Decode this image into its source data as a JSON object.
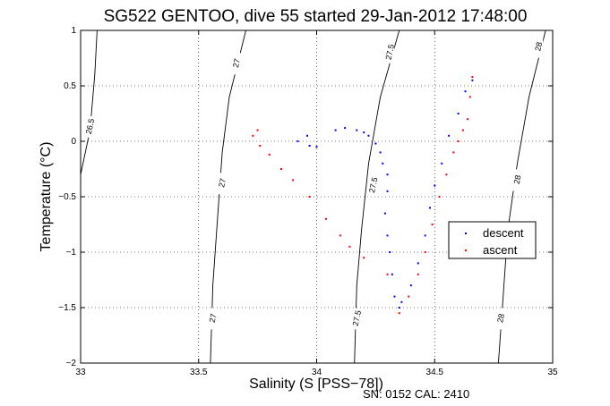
{
  "chart_data": {
    "type": "scatter",
    "title": "SG522 GENTOO, dive 55 started 29-Jan-2012 17:48:00",
    "xlabel": "Salinity (S [PSS−78])",
    "ylabel": "Temperature (°C)",
    "xlim": [
      33,
      35
    ],
    "ylim": [
      -2,
      1
    ],
    "xticks": [
      33,
      33.5,
      34,
      34.5,
      35
    ],
    "xtick_labels": [
      "33",
      "33.5",
      "34",
      "34.5",
      "35"
    ],
    "yticks": [
      1,
      0.5,
      0,
      -0.5,
      -1,
      -1.5,
      -2
    ],
    "ytick_labels": [
      "1",
      "0.5",
      "0",
      "−0.5",
      "−1",
      "−1.5",
      "−2"
    ],
    "grid": true,
    "grid_style": "dotted",
    "legend_position": "right-center",
    "series": [
      {
        "name": "descent",
        "color": "#0000ff",
        "marker": "dot",
        "points": [
          [
            34.08,
            0.1
          ],
          [
            34.12,
            0.12
          ],
          [
            34.17,
            0.1
          ],
          [
            34.2,
            0.08
          ],
          [
            34.22,
            0.05
          ],
          [
            34.25,
            -0.02
          ],
          [
            34.27,
            -0.1
          ],
          [
            34.28,
            -0.2
          ],
          [
            34.3,
            -0.3
          ],
          [
            34.3,
            -0.45
          ],
          [
            34.29,
            -0.65
          ],
          [
            34.3,
            -0.85
          ],
          [
            34.31,
            -1.0
          ],
          [
            34.32,
            -1.2
          ],
          [
            34.33,
            -1.4
          ],
          [
            34.35,
            -1.5
          ],
          [
            34.36,
            -1.45
          ],
          [
            34.4,
            -1.3
          ],
          [
            34.43,
            -1.1
          ],
          [
            34.46,
            -0.85
          ],
          [
            34.48,
            -0.6
          ],
          [
            34.5,
            -0.4
          ],
          [
            34.53,
            -0.2
          ],
          [
            34.56,
            0.05
          ],
          [
            34.6,
            0.25
          ],
          [
            34.63,
            0.45
          ],
          [
            34.66,
            0.55
          ],
          [
            34.0,
            -0.05
          ],
          [
            33.97,
            -0.04
          ],
          [
            33.92,
            0.0
          ],
          [
            33.96,
            0.05
          ]
        ]
      },
      {
        "name": "ascent",
        "color": "#ff0000",
        "marker": "dot",
        "points": [
          [
            34.66,
            0.58
          ],
          [
            34.65,
            0.4
          ],
          [
            34.64,
            0.2
          ],
          [
            34.62,
            0.1
          ],
          [
            34.6,
            0.0
          ],
          [
            34.58,
            -0.1
          ],
          [
            34.55,
            -0.3
          ],
          [
            34.52,
            -0.5
          ],
          [
            34.49,
            -0.75
          ],
          [
            34.46,
            -1.0
          ],
          [
            34.43,
            -1.2
          ],
          [
            34.39,
            -1.4
          ],
          [
            34.35,
            -1.55
          ],
          [
            34.3,
            -1.2
          ],
          [
            34.2,
            -1.05
          ],
          [
            34.14,
            -0.95
          ],
          [
            34.1,
            -0.85
          ],
          [
            34.04,
            -0.7
          ],
          [
            33.97,
            -0.5
          ],
          [
            33.9,
            -0.35
          ],
          [
            33.85,
            -0.25
          ],
          [
            33.8,
            -0.12
          ],
          [
            33.76,
            -0.04
          ],
          [
            33.73,
            0.05
          ],
          [
            33.75,
            0.1
          ]
        ]
      }
    ],
    "density_isolines": [
      {
        "label": "26.5",
        "points": [
          [
            33.07,
            1.0
          ],
          [
            33.06,
            0.6
          ],
          [
            33.04,
            0.1
          ],
          [
            32.99,
            -0.4
          ]
        ]
      },
      {
        "label": "27",
        "points": [
          [
            33.7,
            1.0
          ],
          [
            33.63,
            0.4
          ],
          [
            33.6,
            -0.1
          ],
          [
            33.58,
            -0.7
          ],
          [
            33.56,
            -1.3
          ],
          [
            33.55,
            -2.0
          ]
        ]
      },
      {
        "label": "27.5",
        "points": [
          [
            34.35,
            1.0
          ],
          [
            34.27,
            0.4
          ],
          [
            34.22,
            -0.2
          ],
          [
            34.19,
            -0.8
          ],
          [
            34.17,
            -1.3
          ],
          [
            34.16,
            -2.0
          ]
        ]
      },
      {
        "label": "28",
        "points": [
          [
            34.97,
            1.0
          ],
          [
            34.9,
            0.4
          ],
          [
            34.85,
            -0.2
          ],
          [
            34.81,
            -0.8
          ],
          [
            34.79,
            -1.4
          ],
          [
            34.77,
            -2.0
          ]
        ]
      }
    ],
    "isoline_labels": [
      {
        "text": "26.5",
        "x": 33.04,
        "y": 0.13
      },
      {
        "text": "27",
        "x": 33.66,
        "y": 0.7
      },
      {
        "text": "27.5",
        "x": 34.31,
        "y": 0.8
      },
      {
        "text": "28",
        "x": 34.94,
        "y": 0.85
      },
      {
        "text": "27",
        "x": 33.6,
        "y": -0.38
      },
      {
        "text": "27.5",
        "x": 34.24,
        "y": -0.4
      },
      {
        "text": "28",
        "x": 34.85,
        "y": -0.35
      },
      {
        "text": "27",
        "x": 33.56,
        "y": -1.6
      },
      {
        "text": "27.5",
        "x": 34.17,
        "y": -1.6
      },
      {
        "text": "28",
        "x": 34.78,
        "y": -1.6
      }
    ]
  },
  "footer": "SN: 0152  CAL: 2410"
}
